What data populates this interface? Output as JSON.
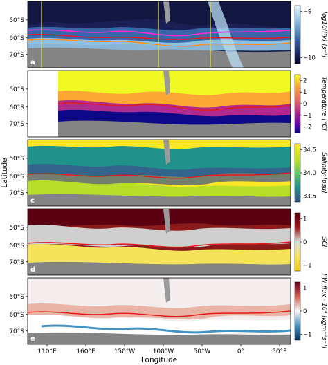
{
  "chart_data": {
    "type": "heatmap",
    "xlabel": "Longitude",
    "ylabel": "Latitude",
    "x_ticks": [
      "110°E",
      "160°E",
      "150°W",
      "100°W",
      "50°W",
      "0°",
      "50°E"
    ],
    "y_ticks": [
      "50°S",
      "60°S",
      "70°S"
    ],
    "panels": [
      {
        "label": "a",
        "colorbar_label": "log10(PV) [s⁻¹]",
        "colorbar_ticks": [
          "−9",
          "−10"
        ],
        "colormap": "blues-dark",
        "colors": [
          "#0a0a2a",
          "#1e2f6b",
          "#3c6fb0",
          "#8fc3e8",
          "#e8f4fb"
        ],
        "overlay_lines": [
          {
            "color": "#ff2bd6"
          },
          {
            "color": "#ff8c1a"
          },
          {
            "color": "#e0e04a"
          }
        ]
      },
      {
        "label": "b",
        "colorbar_label": "Temperature [°C]",
        "colorbar_ticks": [
          "2",
          "1",
          "0",
          "−1",
          "−2"
        ],
        "colormap": "plasma",
        "colors": [
          "#0d0887",
          "#6a00a8",
          "#b12a90",
          "#e16462",
          "#fca636",
          "#f0f921"
        ]
      },
      {
        "label": "c",
        "colorbar_label": "Salinity [psu]",
        "colorbar_ticks": [
          "34.5",
          "34.0",
          "33.5"
        ],
        "colormap": "viridis",
        "colors": [
          "#3b518b",
          "#21918c",
          "#5ec962",
          "#b8de29",
          "#fde725"
        ]
      },
      {
        "label": "d",
        "colorbar_label": "SCI",
        "colorbar_ticks": [
          "1",
          "0",
          "−1"
        ],
        "colormap": "diverging-red-yellow",
        "colors": [
          "#5a0010",
          "#a01a1a",
          "#d9d9d9",
          "#f5e35a",
          "#f2c80f"
        ]
      },
      {
        "label": "e",
        "colorbar_label": "FW flux · 10⁴ [kgm⁻²s⁻¹]",
        "colorbar_ticks": [
          "1",
          "0",
          "−1"
        ],
        "colormap": "RdBu",
        "colors": [
          "#67001f",
          "#d6604d",
          "#f7f7f7",
          "#4393c3",
          "#053061"
        ]
      }
    ],
    "front_line_color": "#e31a1c"
  }
}
